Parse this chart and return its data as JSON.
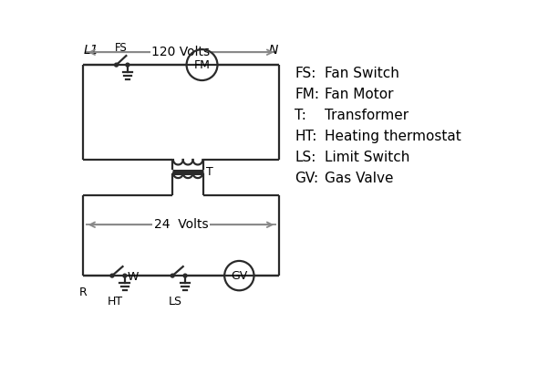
{
  "bg_color": "#ffffff",
  "line_color": "#2a2a2a",
  "arrow_color": "#888888",
  "text_color": "#000000",
  "legend_items": [
    [
      "FS:  ",
      "Fan Switch"
    ],
    [
      "FM:  ",
      "Fan Motor"
    ],
    [
      "T:    ",
      "Transformer"
    ],
    [
      "HT:  ",
      "Heating thermostat"
    ],
    [
      "LS:  ",
      "Limit Switch"
    ],
    [
      "GV:  ",
      "Gas Valve"
    ]
  ],
  "voltage_120": "120 Volts",
  "voltage_24": "24  Volts",
  "label_L1": "L1",
  "label_N": "N",
  "label_T": "T"
}
